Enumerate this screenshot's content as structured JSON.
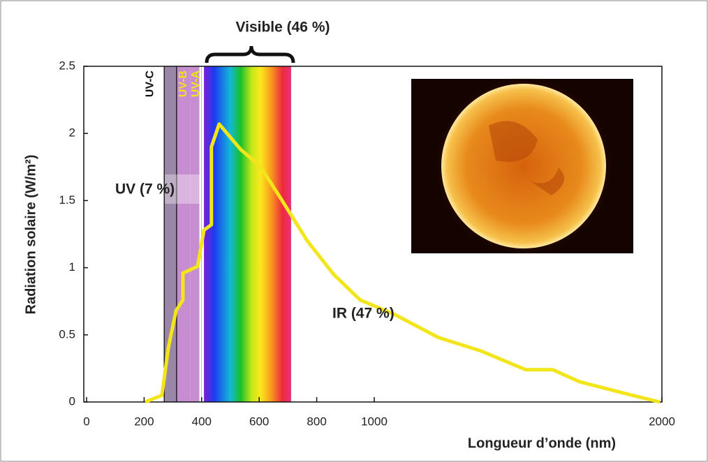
{
  "chart_data": {
    "type": "line",
    "title": "Visible (46 %)",
    "xlabel": "Longueur d’onde (nm)",
    "ylabel": "Radiation solaire (W/m²)",
    "annotations": [
      "UV (7 %)",
      "IR (47 %)"
    ],
    "bands": [
      {
        "label": "UV-C",
        "range": [
          270,
          313
        ],
        "color": "#9a86a6",
        "text_color": "#111"
      },
      {
        "label": "UV-B",
        "range": [
          313,
          360
        ],
        "color": "#c68ed0",
        "text_color": "#f2e21a"
      },
      {
        "label": "UV-A",
        "range": [
          360,
          400
        ],
        "color": "#c68ed0",
        "text_color": "#f2e21a"
      }
    ],
    "visible_range": [
      408,
      711
    ],
    "color": "#f3e51c",
    "x": [
      204,
      262,
      284,
      311,
      335,
      335,
      386,
      408,
      434,
      434,
      461,
      536,
      602,
      677,
      767,
      859,
      951,
      1072,
      1223,
      1371,
      1527,
      1621,
      1714,
      1915,
      1993
    ],
    "values": [
      0,
      0.05,
      0.4,
      0.68,
      0.76,
      0.96,
      1.01,
      1.28,
      1.32,
      1.9,
      2.07,
      1.88,
      1.76,
      1.51,
      1.2,
      0.95,
      0.76,
      0.65,
      0.48,
      0.38,
      0.24,
      0.24,
      0.15,
      0.04,
      0
    ],
    "xlim": [
      0,
      2000
    ],
    "ylim": [
      0,
      2.5
    ],
    "xticks": [
      0,
      200,
      400,
      600,
      800,
      1000,
      2000
    ],
    "yticks": [
      0,
      0.5,
      1,
      1.5,
      2,
      2.5
    ]
  }
}
